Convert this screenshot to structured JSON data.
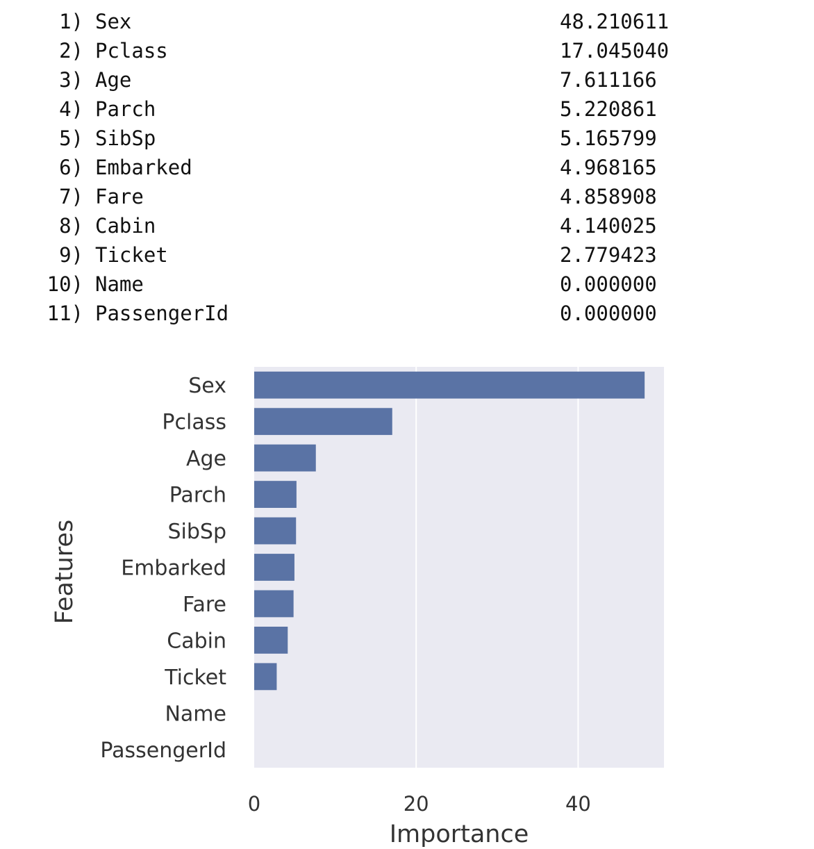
{
  "printout": {
    "rows": [
      {
        "rank": "1)",
        "name": "Sex",
        "value": "48.210611"
      },
      {
        "rank": "2)",
        "name": "Pclass",
        "value": "17.045040"
      },
      {
        "rank": "3)",
        "name": "Age",
        "value": "7.611166"
      },
      {
        "rank": "4)",
        "name": "Parch",
        "value": "5.220861"
      },
      {
        "rank": "5)",
        "name": "SibSp",
        "value": "5.165799"
      },
      {
        "rank": "6)",
        "name": "Embarked",
        "value": "4.968165"
      },
      {
        "rank": "7)",
        "name": "Fare",
        "value": "4.858908"
      },
      {
        "rank": "8)",
        "name": "Cabin",
        "value": "4.140025"
      },
      {
        "rank": "9)",
        "name": "Ticket",
        "value": "2.779423"
      },
      {
        "rank": "10)",
        "name": "Name",
        "value": "0.000000"
      },
      {
        "rank": "11)",
        "name": "PassengerId",
        "value": "0.000000"
      }
    ]
  },
  "chart_data": {
    "type": "bar",
    "orientation": "horizontal",
    "categories": [
      "Sex",
      "Pclass",
      "Age",
      "Parch",
      "SibSp",
      "Embarked",
      "Fare",
      "Cabin",
      "Ticket",
      "Name",
      "PassengerId"
    ],
    "values": [
      48.210611,
      17.04504,
      7.611166,
      5.220861,
      5.165799,
      4.968165,
      4.858908,
      4.140025,
      2.779423,
      0.0,
      0.0
    ],
    "xlabel": "Importance",
    "ylabel": "Features",
    "xticks": [
      0,
      20,
      40
    ],
    "xtick_labels": [
      "0",
      "20",
      "40"
    ],
    "xlim": [
      0,
      50.6
    ],
    "grid": true,
    "colors": {
      "bar": "#5a73a5",
      "background": "#eaeaf2",
      "grid": "#ffffff"
    }
  }
}
